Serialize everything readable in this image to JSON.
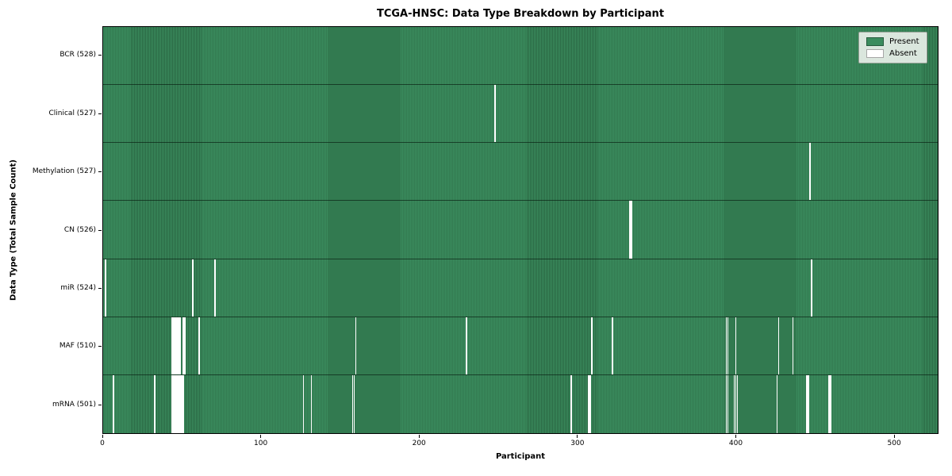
{
  "chart_data": {
    "type": "heatmap",
    "title": "TCGA-HNSC: Data Type Breakdown by Participant",
    "xlabel": "Participant",
    "ylabel": "Data Type (Total Sample Count)",
    "x_ticks": [
      0,
      100,
      200,
      300,
      400,
      500
    ],
    "x_range": [
      0,
      528
    ],
    "total_participants": 528,
    "grid": false,
    "legend_position": "upper right",
    "legend": [
      {
        "label": "Present",
        "color": "#3b8c5e"
      },
      {
        "label": "Absent",
        "color": "#ffffff"
      }
    ],
    "colors": {
      "present_fill": "#3b8c5e",
      "cell_edge": "#2a6843",
      "absent_fill": "#ffffff",
      "plot_border": "#000000"
    },
    "rows": [
      {
        "label": "BCR (528)",
        "data_type": "BCR",
        "count": 528,
        "absent_participants": []
      },
      {
        "label": "Clinical (527)",
        "data_type": "Clinical",
        "count": 527,
        "absent_participants": [
          247
        ]
      },
      {
        "label": "Methylation (527)",
        "data_type": "Methylation",
        "count": 527,
        "absent_participants": [
          446
        ]
      },
      {
        "label": "CN (526)",
        "data_type": "CN",
        "count": 526,
        "absent_participants": [
          332,
          333
        ]
      },
      {
        "label": "miR (524)",
        "data_type": "miR",
        "count": 524,
        "absent_participants": [
          1,
          56,
          70,
          447
        ]
      },
      {
        "label": "MAF (510)",
        "data_type": "MAF",
        "count": 510,
        "absent_participants": [
          43,
          44,
          45,
          46,
          47,
          48,
          50,
          51,
          60,
          159,
          229,
          308,
          321,
          393,
          394,
          399,
          426,
          435
        ]
      },
      {
        "label": "mRNA (501)",
        "data_type": "mRNA",
        "count": 501,
        "absent_participants": [
          6,
          32,
          43,
          44,
          45,
          46,
          47,
          48,
          49,
          50,
          126,
          131,
          157,
          158,
          295,
          306,
          307,
          393,
          394,
          398,
          399,
          400,
          425,
          444,
          445,
          458,
          459
        ]
      }
    ]
  }
}
